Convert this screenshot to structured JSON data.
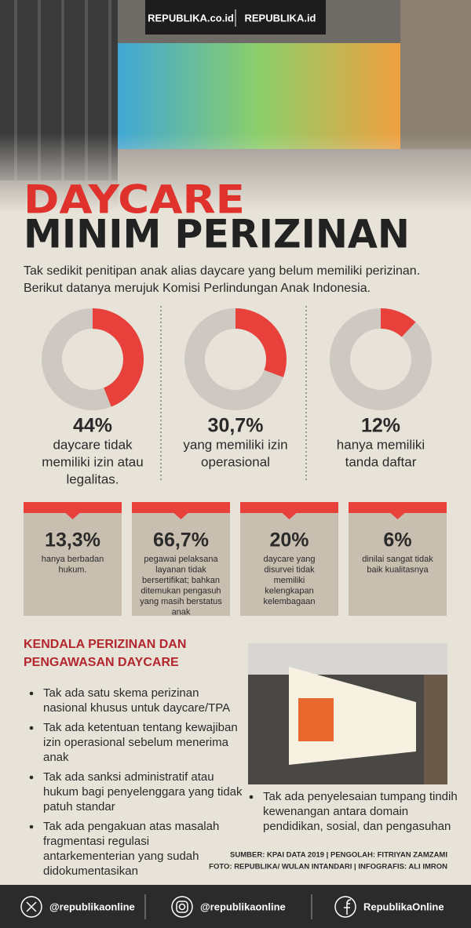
{
  "header": {
    "logos": [
      "REPUBLIKA.co.id",
      "REPUBLIKA.id"
    ],
    "title_line1": "DAYCARE",
    "title_line2": "MINIM PERIZINAN"
  },
  "intro": [
    "Tak sedikit penitipan anak alias daycare yang belum memiliki perizinan.",
    "Berikut datanya merujuk Komisi Perlindungan Anak Indonesia."
  ],
  "donuts": [
    {
      "value": 44,
      "label": "44%",
      "lines": [
        "daycare tidak",
        "memiliki izin atau",
        "legalitas."
      ]
    },
    {
      "value": 30.7,
      "label": "30,7%",
      "lines": [
        "yang memiliki izin",
        "operasional"
      ]
    },
    {
      "value": 12,
      "label": "12%",
      "lines": [
        "hanya memiliki",
        "tanda daftar"
      ]
    }
  ],
  "boxes": [
    {
      "number": "13,3%",
      "lines": [
        "hanya berbadan",
        "hukum."
      ]
    },
    {
      "number": "66,7%",
      "lines": [
        "pegawai pelaksana",
        "layanan tidak",
        "bersertifikat; bahkan",
        "ditemukan pengasuh",
        "yang masih berstatus",
        "anak"
      ]
    },
    {
      "number": "20%",
      "lines": [
        "daycare yang",
        "disurvei tidak",
        "memiliki",
        "kelengkapan",
        "kelembagaan"
      ]
    },
    {
      "number": "6%",
      "lines": [
        "dinilai sangat tidak",
        "baik kualitasnya"
      ]
    }
  ],
  "constraints": {
    "heading": [
      "KENDALA PERIZINAN DAN",
      "PENGAWASAN DAYCARE"
    ],
    "bullets": [
      [
        "Tak ada satu skema perizinan",
        "nasional khusus untuk daycare/TPA"
      ],
      [
        "Tak ada ketentuan tentang kewajiban",
        "izin operasional sebelum menerima",
        "anak"
      ],
      [
        "Tak ada sanksi administratif atau",
        "hukum bagi penyelenggara yang tidak",
        "patuh standar"
      ],
      [
        "Tak ada pengakuan atas masalah",
        "fragmentasi regulasi",
        "antarkementerian yang sudah",
        "didokumentasikan"
      ],
      [
        "Tak ada penyelesaian tumpang tindih",
        "kewenangan antara domain",
        "pendidikan, sosial, dan pengasuhan"
      ]
    ]
  },
  "credits": [
    "SUMBER: KPAI DATA 2019 | PENGOLAH: FITRIYAN ZAMZAMI",
    "FOTO: REPUBLIKA/ WULAN INTANDARI | INFOGRAFIS: ALI IMRON"
  ],
  "footer": [
    "@republikaonline",
    "@republikaonline",
    "RepublikaOnline"
  ]
}
